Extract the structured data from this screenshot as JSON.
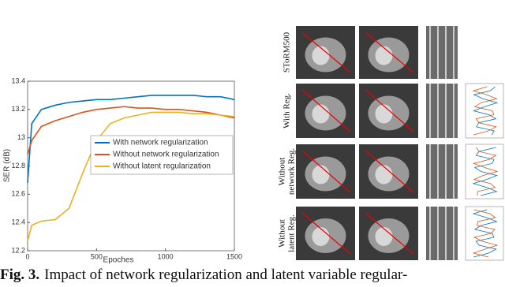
{
  "chart_data": {
    "type": "line",
    "xlabel": "Epoches",
    "ylabel": "SER (dB)",
    "x": [
      0,
      30,
      100,
      200,
      300,
      400,
      500,
      600,
      700,
      800,
      900,
      1000,
      1100,
      1200,
      1300,
      1400,
      1500
    ],
    "series": [
      {
        "name": "With network regularization",
        "color": "#0072bd",
        "values": [
          12.68,
          13.1,
          13.2,
          13.23,
          13.25,
          13.26,
          13.27,
          13.27,
          13.28,
          13.29,
          13.3,
          13.3,
          13.3,
          13.3,
          13.29,
          13.29,
          13.27
        ]
      },
      {
        "name": "Without network regularization",
        "color": "#d95319",
        "values": [
          12.88,
          12.98,
          13.08,
          13.12,
          13.15,
          13.18,
          13.2,
          13.21,
          13.22,
          13.21,
          13.21,
          13.2,
          13.2,
          13.19,
          13.18,
          13.16,
          13.14
        ]
      },
      {
        "name": "Without latent regularization",
        "color": "#edb120",
        "values": [
          12.27,
          12.38,
          12.41,
          12.42,
          12.5,
          12.75,
          12.98,
          13.1,
          13.14,
          13.16,
          13.18,
          13.18,
          13.18,
          13.17,
          13.17,
          13.16,
          13.15
        ]
      }
    ],
    "xlim": [
      0,
      1500
    ],
    "xticks": [
      0,
      500,
      1000,
      1500
    ],
    "ylim": [
      12.2,
      13.4
    ],
    "yticks": [
      12.2,
      12.4,
      12.6,
      12.8,
      13,
      13.2,
      13.4
    ],
    "grid": false,
    "legend": "center right"
  },
  "panel_labels": [
    [
      "SToRM500"
    ],
    [
      "With Reg."
    ],
    [
      "Without",
      "network Reg."
    ],
    [
      "Without",
      "latent Reg."
    ]
  ],
  "caption": {
    "label": "Fig. 3.",
    "text": "Impact of network regularization and latent variable regular-"
  }
}
